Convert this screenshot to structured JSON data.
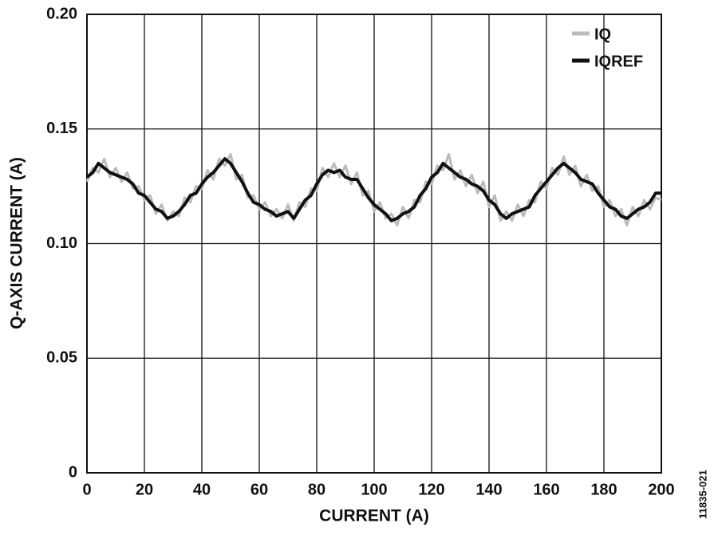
{
  "chart_data": {
    "type": "line",
    "xlabel": "CURRENT (A)",
    "ylabel": "Q-AXIS CURRENT (A)",
    "annotation": "11835-021",
    "x": [
      0,
      2,
      4,
      6,
      8,
      10,
      12,
      14,
      16,
      18,
      20,
      22,
      24,
      26,
      28,
      30,
      32,
      34,
      36,
      38,
      40,
      42,
      44,
      46,
      48,
      50,
      52,
      54,
      56,
      58,
      60,
      62,
      64,
      66,
      68,
      70,
      72,
      74,
      76,
      78,
      80,
      82,
      84,
      86,
      88,
      90,
      92,
      94,
      96,
      98,
      100,
      102,
      104,
      106,
      108,
      110,
      112,
      114,
      116,
      118,
      120,
      122,
      124,
      126,
      128,
      130,
      132,
      134,
      136,
      138,
      140,
      142,
      144,
      146,
      148,
      150,
      152,
      154,
      156,
      158,
      160,
      162,
      164,
      166,
      168,
      170,
      172,
      174,
      176,
      178,
      180,
      182,
      184,
      186,
      188,
      190,
      192,
      194,
      196,
      198,
      200
    ],
    "series": [
      {
        "name": "IQ",
        "color": "#bbbbbb",
        "values": [
          0.127,
          0.133,
          0.131,
          0.137,
          0.129,
          0.133,
          0.127,
          0.131,
          0.124,
          0.125,
          0.119,
          0.121,
          0.113,
          0.117,
          0.11,
          0.114,
          0.112,
          0.12,
          0.118,
          0.125,
          0.124,
          0.132,
          0.128,
          0.137,
          0.134,
          0.139,
          0.128,
          0.13,
          0.12,
          0.121,
          0.115,
          0.118,
          0.112,
          0.115,
          0.111,
          0.117,
          0.11,
          0.118,
          0.116,
          0.124,
          0.123,
          0.133,
          0.129,
          0.135,
          0.129,
          0.134,
          0.126,
          0.131,
          0.121,
          0.123,
          0.114,
          0.118,
          0.111,
          0.113,
          0.108,
          0.116,
          0.111,
          0.119,
          0.118,
          0.127,
          0.126,
          0.134,
          0.132,
          0.139,
          0.128,
          0.132,
          0.125,
          0.13,
          0.122,
          0.127,
          0.116,
          0.121,
          0.11,
          0.114,
          0.11,
          0.117,
          0.112,
          0.119,
          0.118,
          0.127,
          0.124,
          0.133,
          0.13,
          0.138,
          0.13,
          0.134,
          0.125,
          0.13,
          0.123,
          0.125,
          0.116,
          0.119,
          0.112,
          0.115,
          0.108,
          0.116,
          0.112,
          0.119,
          0.115,
          0.12,
          0.119
        ]
      },
      {
        "name": "IQREF",
        "color": "#111111",
        "values": [
          0.129,
          0.131,
          0.135,
          0.133,
          0.131,
          0.13,
          0.129,
          0.128,
          0.126,
          0.122,
          0.121,
          0.118,
          0.115,
          0.114,
          0.111,
          0.112,
          0.114,
          0.117,
          0.121,
          0.122,
          0.126,
          0.129,
          0.131,
          0.134,
          0.137,
          0.135,
          0.131,
          0.127,
          0.122,
          0.118,
          0.117,
          0.115,
          0.114,
          0.112,
          0.113,
          0.114,
          0.111,
          0.115,
          0.119,
          0.121,
          0.126,
          0.13,
          0.132,
          0.131,
          0.132,
          0.129,
          0.128,
          0.128,
          0.124,
          0.12,
          0.117,
          0.115,
          0.113,
          0.11,
          0.111,
          0.113,
          0.114,
          0.116,
          0.121,
          0.124,
          0.129,
          0.131,
          0.135,
          0.133,
          0.131,
          0.129,
          0.128,
          0.126,
          0.125,
          0.123,
          0.119,
          0.117,
          0.113,
          0.111,
          0.113,
          0.114,
          0.115,
          0.116,
          0.121,
          0.124,
          0.127,
          0.13,
          0.133,
          0.135,
          0.133,
          0.131,
          0.128,
          0.127,
          0.126,
          0.122,
          0.119,
          0.116,
          0.115,
          0.112,
          0.111,
          0.113,
          0.115,
          0.116,
          0.118,
          0.122,
          0.122
        ]
      }
    ],
    "xlim": [
      0,
      200
    ],
    "xticks": [
      0,
      20,
      40,
      60,
      80,
      100,
      120,
      140,
      160,
      180,
      200
    ],
    "ylim": [
      0,
      0.2
    ],
    "yticks": [
      0,
      0.05,
      {
        "value": 0.1,
        "label": "0.10"
      },
      0.15,
      {
        "value": 0.2,
        "label": "0.20"
      }
    ],
    "grid": true,
    "legend": "upper right"
  }
}
